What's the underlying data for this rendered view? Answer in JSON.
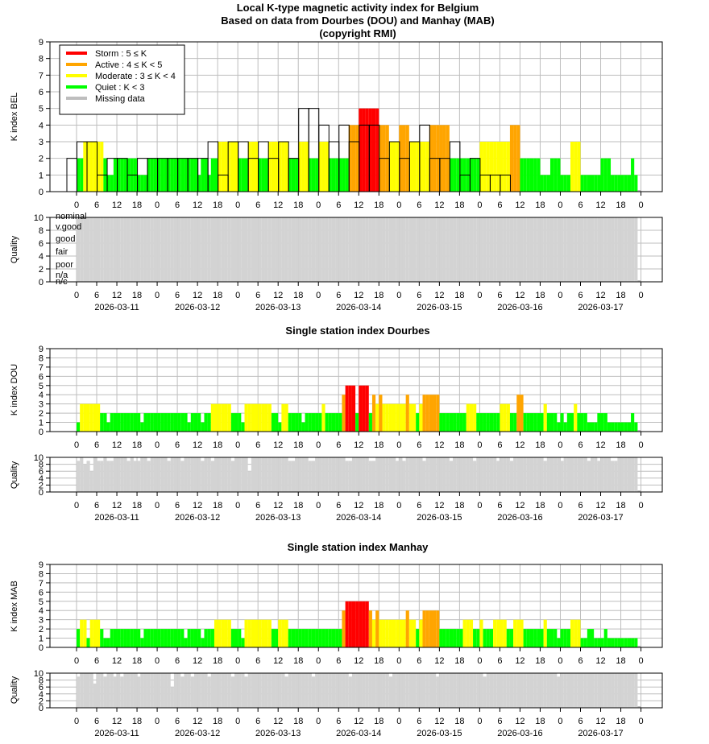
{
  "header": {
    "title": "Local K-type magnetic activity index for Belgium",
    "subtitle": "Based on data from Dourbes (DOU) and Manhay (MAB)",
    "copyright": "(copyright RMI)"
  },
  "legend": [
    {
      "label": "Storm : 5 ≤ K",
      "color": "#ff0000"
    },
    {
      "label": "Active : 4 ≤ K < 5",
      "color": "#ffa500"
    },
    {
      "label": "Moderate : 3 ≤ K < 4",
      "color": "#ffff00"
    },
    {
      "label": "Quiet : K < 3",
      "color": "#00ff00"
    },
    {
      "label": "Missing data",
      "color": "#bebebe"
    }
  ],
  "colors": {
    "storm": "#ff0000",
    "active": "#ffa500",
    "moderate": "#ffff00",
    "quiet": "#00ff00",
    "missing": "#bebebe",
    "quality": "#d3d3d3",
    "grid": "#bebebe"
  },
  "panels": {
    "dou_title": "Single station index Dourbes",
    "mab_title": "Single station index Manhay",
    "bel_ylabel": "K index BEL",
    "dou_ylabel": "K index DOU",
    "mab_ylabel": "K index MAB",
    "quality_ylabel": "Quality"
  },
  "quality_levels": [
    "nominal",
    "v.good",
    "good",
    "fair",
    "poor",
    "n/a",
    "n/c"
  ],
  "chart_data": {
    "type": "bar",
    "x_hour_ticks": [
      "0",
      "6",
      "12",
      "18",
      "0",
      "6",
      "12",
      "18",
      "0",
      "6",
      "12",
      "18",
      "0",
      "6",
      "12",
      "18",
      "0",
      "6",
      "12",
      "18",
      "0",
      "6",
      "12",
      "18",
      "0",
      "6",
      "12",
      "18",
      "0"
    ],
    "x_dates": [
      "2026-03-11",
      "2026-03-12",
      "2026-03-13",
      "2026-03-14",
      "2026-03-15",
      "2026-03-16",
      "2026-03-17"
    ],
    "k_ylim": [
      0,
      9
    ],
    "k_yticks": [
      "0",
      "1",
      "2",
      "3",
      "4",
      "5",
      "6",
      "7",
      "8",
      "9"
    ],
    "q_ylim": [
      0,
      10
    ],
    "q_yticks": [
      "0",
      "2",
      "4",
      "6",
      "8",
      "10"
    ],
    "bel_k_3h": [
      2,
      3,
      3,
      1,
      2,
      2,
      1,
      2,
      2,
      2,
      2,
      2,
      2,
      2,
      3,
      1,
      3,
      3,
      2,
      3,
      2,
      3,
      2,
      5,
      5,
      4,
      3,
      4,
      3,
      4,
      4,
      2,
      3,
      2,
      3,
      4,
      2,
      2,
      3,
      1,
      2,
      1,
      1,
      1
    ],
    "bel_k_hourly": [
      2,
      2,
      3,
      3,
      3,
      3,
      3,
      3,
      2,
      1,
      1,
      2,
      2,
      2,
      2,
      2,
      2,
      2,
      1,
      1,
      1,
      2,
      2,
      2,
      2,
      2,
      2,
      2,
      2,
      2,
      2,
      2,
      2,
      2,
      2,
      2,
      1,
      2,
      2,
      1,
      2,
      2,
      3,
      3,
      3,
      3,
      3,
      3,
      2,
      2,
      2,
      3,
      3,
      3,
      2,
      2,
      2,
      3,
      3,
      3,
      3,
      3,
      3,
      2,
      2,
      2,
      3,
      3,
      3,
      2,
      2,
      2,
      3,
      3,
      3,
      2,
      2,
      2,
      2,
      2,
      2,
      4,
      4,
      4,
      5,
      5,
      5,
      5,
      5,
      5,
      4,
      4,
      4,
      3,
      3,
      3,
      4,
      4,
      4,
      3,
      3,
      3,
      3,
      3,
      3,
      4,
      4,
      4,
      4,
      4,
      4,
      2,
      2,
      2,
      2,
      2,
      2,
      2,
      2,
      2,
      3,
      3,
      3,
      3,
      3,
      3,
      3,
      3,
      3,
      4,
      4,
      4,
      2,
      2,
      2,
      2,
      2,
      2,
      1,
      1,
      1,
      2,
      2,
      2,
      1,
      1,
      1,
      3,
      3,
      3,
      1,
      1,
      1,
      1,
      1,
      1,
      2,
      2,
      2,
      1,
      1,
      1,
      1,
      1,
      1,
      2,
      1
    ],
    "dou_k_hourly": [
      1,
      3,
      3,
      3,
      3,
      3,
      3,
      2,
      2,
      1,
      2,
      2,
      2,
      2,
      2,
      2,
      2,
      2,
      2,
      1,
      2,
      2,
      2,
      2,
      2,
      2,
      2,
      2,
      2,
      2,
      2,
      2,
      2,
      1,
      2,
      2,
      2,
      1,
      2,
      2,
      3,
      3,
      3,
      3,
      3,
      3,
      2,
      2,
      2,
      1,
      3,
      3,
      3,
      3,
      3,
      3,
      3,
      3,
      2,
      2,
      1,
      3,
      3,
      2,
      2,
      2,
      2,
      1,
      2,
      2,
      2,
      2,
      2,
      3,
      2,
      2,
      2,
      2,
      2,
      4,
      5,
      5,
      5,
      2,
      5,
      5,
      5,
      2,
      4,
      3,
      4,
      3,
      3,
      3,
      3,
      3,
      3,
      3,
      4,
      3,
      3,
      2,
      3,
      4,
      4,
      4,
      4,
      4,
      2,
      2,
      2,
      2,
      2,
      2,
      2,
      2,
      3,
      3,
      3,
      2,
      2,
      2,
      2,
      2,
      2,
      2,
      3,
      3,
      3,
      2,
      2,
      4,
      4,
      2,
      2,
      2,
      2,
      2,
      2,
      3,
      2,
      2,
      2,
      1,
      2,
      1,
      2,
      2,
      3,
      2,
      2,
      2,
      1,
      1,
      1,
      2,
      2,
      2,
      1,
      1,
      1,
      1,
      1,
      1,
      1,
      2,
      1
    ],
    "mab_k_hourly": [
      2,
      3,
      3,
      1,
      3,
      3,
      3,
      2,
      1,
      1,
      2,
      2,
      2,
      2,
      2,
      2,
      2,
      2,
      2,
      1,
      2,
      2,
      2,
      2,
      2,
      2,
      2,
      2,
      2,
      2,
      2,
      2,
      1,
      2,
      2,
      2,
      2,
      1,
      2,
      2,
      2,
      3,
      3,
      3,
      3,
      3,
      2,
      2,
      2,
      1,
      3,
      3,
      3,
      3,
      3,
      3,
      3,
      3,
      2,
      2,
      3,
      3,
      3,
      2,
      2,
      2,
      2,
      2,
      2,
      2,
      2,
      2,
      2,
      2,
      2,
      2,
      2,
      2,
      2,
      4,
      5,
      5,
      5,
      5,
      5,
      5,
      5,
      4,
      3,
      4,
      3,
      3,
      3,
      3,
      3,
      3,
      3,
      3,
      4,
      3,
      3,
      2,
      3,
      4,
      4,
      4,
      4,
      4,
      2,
      2,
      2,
      2,
      2,
      2,
      2,
      3,
      3,
      3,
      2,
      2,
      3,
      2,
      2,
      2,
      3,
      3,
      3,
      3,
      2,
      2,
      3,
      3,
      3,
      2,
      2,
      2,
      2,
      2,
      2,
      3,
      2,
      2,
      2,
      1,
      2,
      2,
      2,
      3,
      3,
      3,
      1,
      1,
      2,
      2,
      1,
      1,
      1,
      2,
      1,
      1,
      1,
      1,
      1,
      1,
      1,
      1,
      1
    ],
    "bel_quality_hourly": [
      10,
      10,
      10,
      10,
      10,
      10,
      10,
      10,
      10,
      10,
      10,
      10,
      10,
      10,
      10,
      10,
      10,
      10,
      10,
      10,
      10,
      10,
      10,
      10,
      10,
      10,
      10,
      10,
      10,
      10,
      10,
      10,
      10,
      10,
      10,
      10,
      10,
      10,
      10,
      10,
      10,
      10,
      10,
      10,
      10,
      10,
      10,
      10,
      10,
      10,
      10,
      10,
      10,
      10,
      10,
      10,
      10,
      10,
      10,
      10,
      10,
      10,
      10,
      10,
      10,
      10,
      10,
      10,
      10,
      10,
      10,
      10,
      10,
      10,
      10,
      10,
      10,
      10,
      10,
      10,
      10,
      10,
      10,
      10,
      10,
      10,
      10,
      10,
      10,
      10,
      10,
      10,
      10,
      10,
      10,
      10,
      10,
      10,
      10,
      10,
      10,
      10,
      10,
      10,
      10,
      10,
      10,
      10,
      10,
      10,
      10,
      10,
      10,
      10,
      10,
      10,
      10,
      10,
      10,
      10,
      10,
      10,
      10,
      10,
      10,
      10,
      10,
      10,
      10,
      10,
      10,
      10,
      10,
      10,
      10,
      10,
      10,
      10,
      10,
      10,
      10,
      10,
      10,
      10,
      10,
      10,
      10,
      10,
      10,
      10,
      10,
      10,
      10,
      10,
      10,
      10,
      10,
      10,
      10,
      10,
      10,
      10,
      10,
      10,
      10,
      10,
      10
    ],
    "dou_quality_hourly": [
      9,
      10,
      8,
      9,
      6,
      10,
      9,
      9,
      10,
      9,
      9,
      10,
      10,
      10,
      10,
      9,
      10,
      9,
      9,
      10,
      10,
      9,
      10,
      10,
      10,
      10,
      10,
      9,
      10,
      10,
      10,
      9,
      10,
      10,
      10,
      10,
      10,
      9,
      10,
      10,
      9,
      10,
      10,
      10,
      10,
      10,
      9,
      10,
      10,
      10,
      10,
      6,
      10,
      10,
      10,
      10,
      10,
      10,
      10,
      10,
      10,
      10,
      10,
      9,
      9,
      10,
      10,
      10,
      10,
      9,
      9,
      10,
      10,
      10,
      10,
      10,
      10,
      10,
      10,
      10,
      9,
      9,
      10,
      10,
      10,
      10,
      10,
      9,
      9,
      10,
      10,
      10,
      10,
      10,
      10,
      9,
      10,
      9,
      10,
      10,
      10,
      10,
      10,
      9,
      10,
      10,
      10,
      10,
      10,
      10,
      10,
      9,
      10,
      10,
      10,
      10,
      10,
      10,
      9,
      10,
      10,
      10,
      10,
      10,
      10,
      9,
      10,
      10,
      10,
      9,
      10,
      10,
      10,
      10,
      10,
      10,
      10,
      10,
      10,
      9,
      10,
      10,
      10,
      10,
      9,
      10,
      10,
      10,
      10,
      10,
      10,
      10,
      9,
      10,
      10,
      9,
      10,
      10,
      10,
      9,
      9,
      10,
      10,
      10,
      10,
      10,
      10
    ],
    "mab_quality_hourly": [
      9,
      10,
      10,
      10,
      10,
      7,
      10,
      10,
      9,
      10,
      10,
      9,
      10,
      9,
      10,
      10,
      10,
      10,
      9,
      10,
      10,
      10,
      10,
      10,
      10,
      10,
      10,
      10,
      6,
      10,
      10,
      9,
      10,
      10,
      9,
      10,
      10,
      10,
      10,
      9,
      10,
      10,
      10,
      10,
      10,
      10,
      9,
      10,
      10,
      10,
      9,
      10,
      10,
      10,
      10,
      10,
      10,
      10,
      10,
      10,
      10,
      10,
      9,
      10,
      10,
      10,
      10,
      10,
      10,
      10,
      9,
      10,
      10,
      10,
      10,
      10,
      10,
      10,
      10,
      10,
      10,
      9,
      10,
      10,
      10,
      10,
      10,
      10,
      10,
      10,
      10,
      10,
      10,
      9,
      10,
      10,
      10,
      10,
      10,
      10,
      10,
      10,
      10,
      10,
      10,
      10,
      10,
      9,
      10,
      10,
      10,
      10,
      10,
      10,
      10,
      10,
      10,
      10,
      10,
      10,
      10,
      9,
      10,
      10,
      10,
      10,
      10,
      10,
      10,
      10,
      10,
      10,
      10,
      10,
      10,
      10,
      10,
      10,
      10,
      10,
      10,
      10,
      10,
      9,
      10,
      10,
      10,
      10,
      10,
      10,
      10,
      10,
      10,
      10,
      10,
      10,
      10,
      10,
      10,
      10,
      10,
      10,
      10,
      10,
      10,
      10,
      10
    ]
  }
}
